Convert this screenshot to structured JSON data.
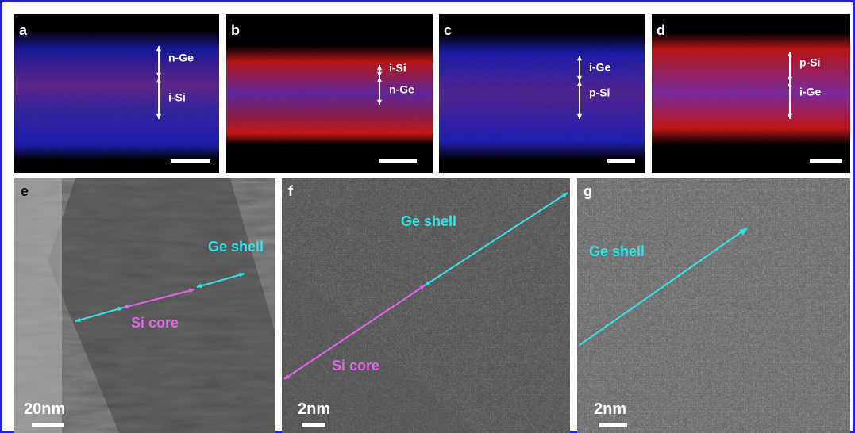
{
  "top_panels": [
    {
      "letter": "a",
      "labels": [
        "n-Ge",
        "i-Si"
      ]
    },
    {
      "letter": "b",
      "labels": [
        "i-Si",
        "n-Ge"
      ]
    },
    {
      "letter": "c",
      "labels": [
        "i-Ge",
        "p-Si"
      ]
    },
    {
      "letter": "d",
      "labels": [
        "p-Si",
        "i-Ge"
      ]
    }
  ],
  "bottom_panels": [
    {
      "letter": "e",
      "labels": [
        "Ge shell",
        "Si core"
      ],
      "scale_bar": "20nm"
    },
    {
      "letter": "f",
      "labels": [
        "Ge shell",
        "Si core"
      ],
      "scale_bar": "2nm"
    },
    {
      "letter": "g",
      "labels": [
        "Ge shell"
      ],
      "scale_bar": "2nm"
    }
  ]
}
